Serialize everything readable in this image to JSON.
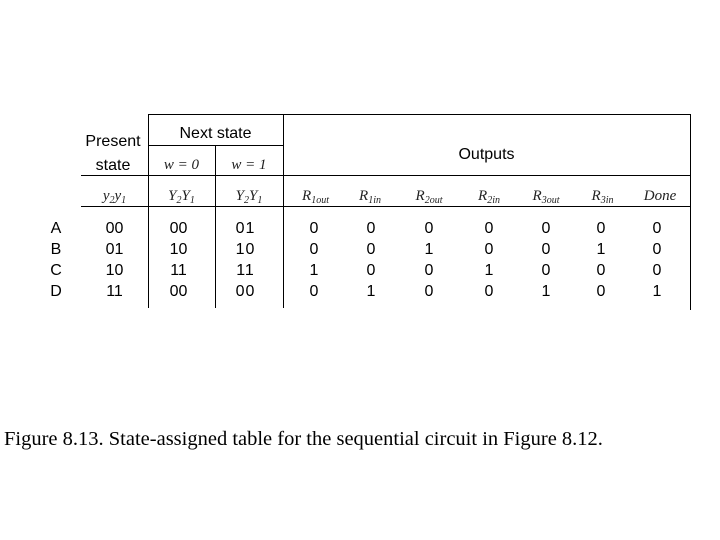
{
  "header": {
    "present_state": "Present state",
    "next_state": "Next state",
    "outputs": "Outputs",
    "w0": "w = 0",
    "w1": "w = 1",
    "present_vars": "y2y1",
    "next_vars_w0": "Y2Y1",
    "next_vars_w1": "Y2Y1",
    "output_names": [
      "R1out",
      "R1in",
      "R2out",
      "R2in",
      "R3out",
      "R3in",
      "Done"
    ]
  },
  "rows": [
    {
      "label": "A",
      "present": "00",
      "next_w0": "00",
      "next_w1": "01",
      "outputs": [
        "0",
        "0",
        "0",
        "0",
        "0",
        "0",
        "0"
      ]
    },
    {
      "label": "B",
      "present": "01",
      "next_w0": "10",
      "next_w1": "10",
      "outputs": [
        "0",
        "0",
        "1",
        "0",
        "0",
        "1",
        "0"
      ]
    },
    {
      "label": "C",
      "present": "10",
      "next_w0": "11",
      "next_w1": "11",
      "outputs": [
        "1",
        "0",
        "0",
        "1",
        "0",
        "0",
        "0"
      ]
    },
    {
      "label": "D",
      "present": "11",
      "next_w0": "00",
      "next_w1": "00",
      "outputs": [
        "0",
        "1",
        "0",
        "0",
        "1",
        "0",
        "1"
      ]
    }
  ],
  "caption": "Figure 8.13.   State-assigned table for the sequential circuit in Figure 8.12."
}
